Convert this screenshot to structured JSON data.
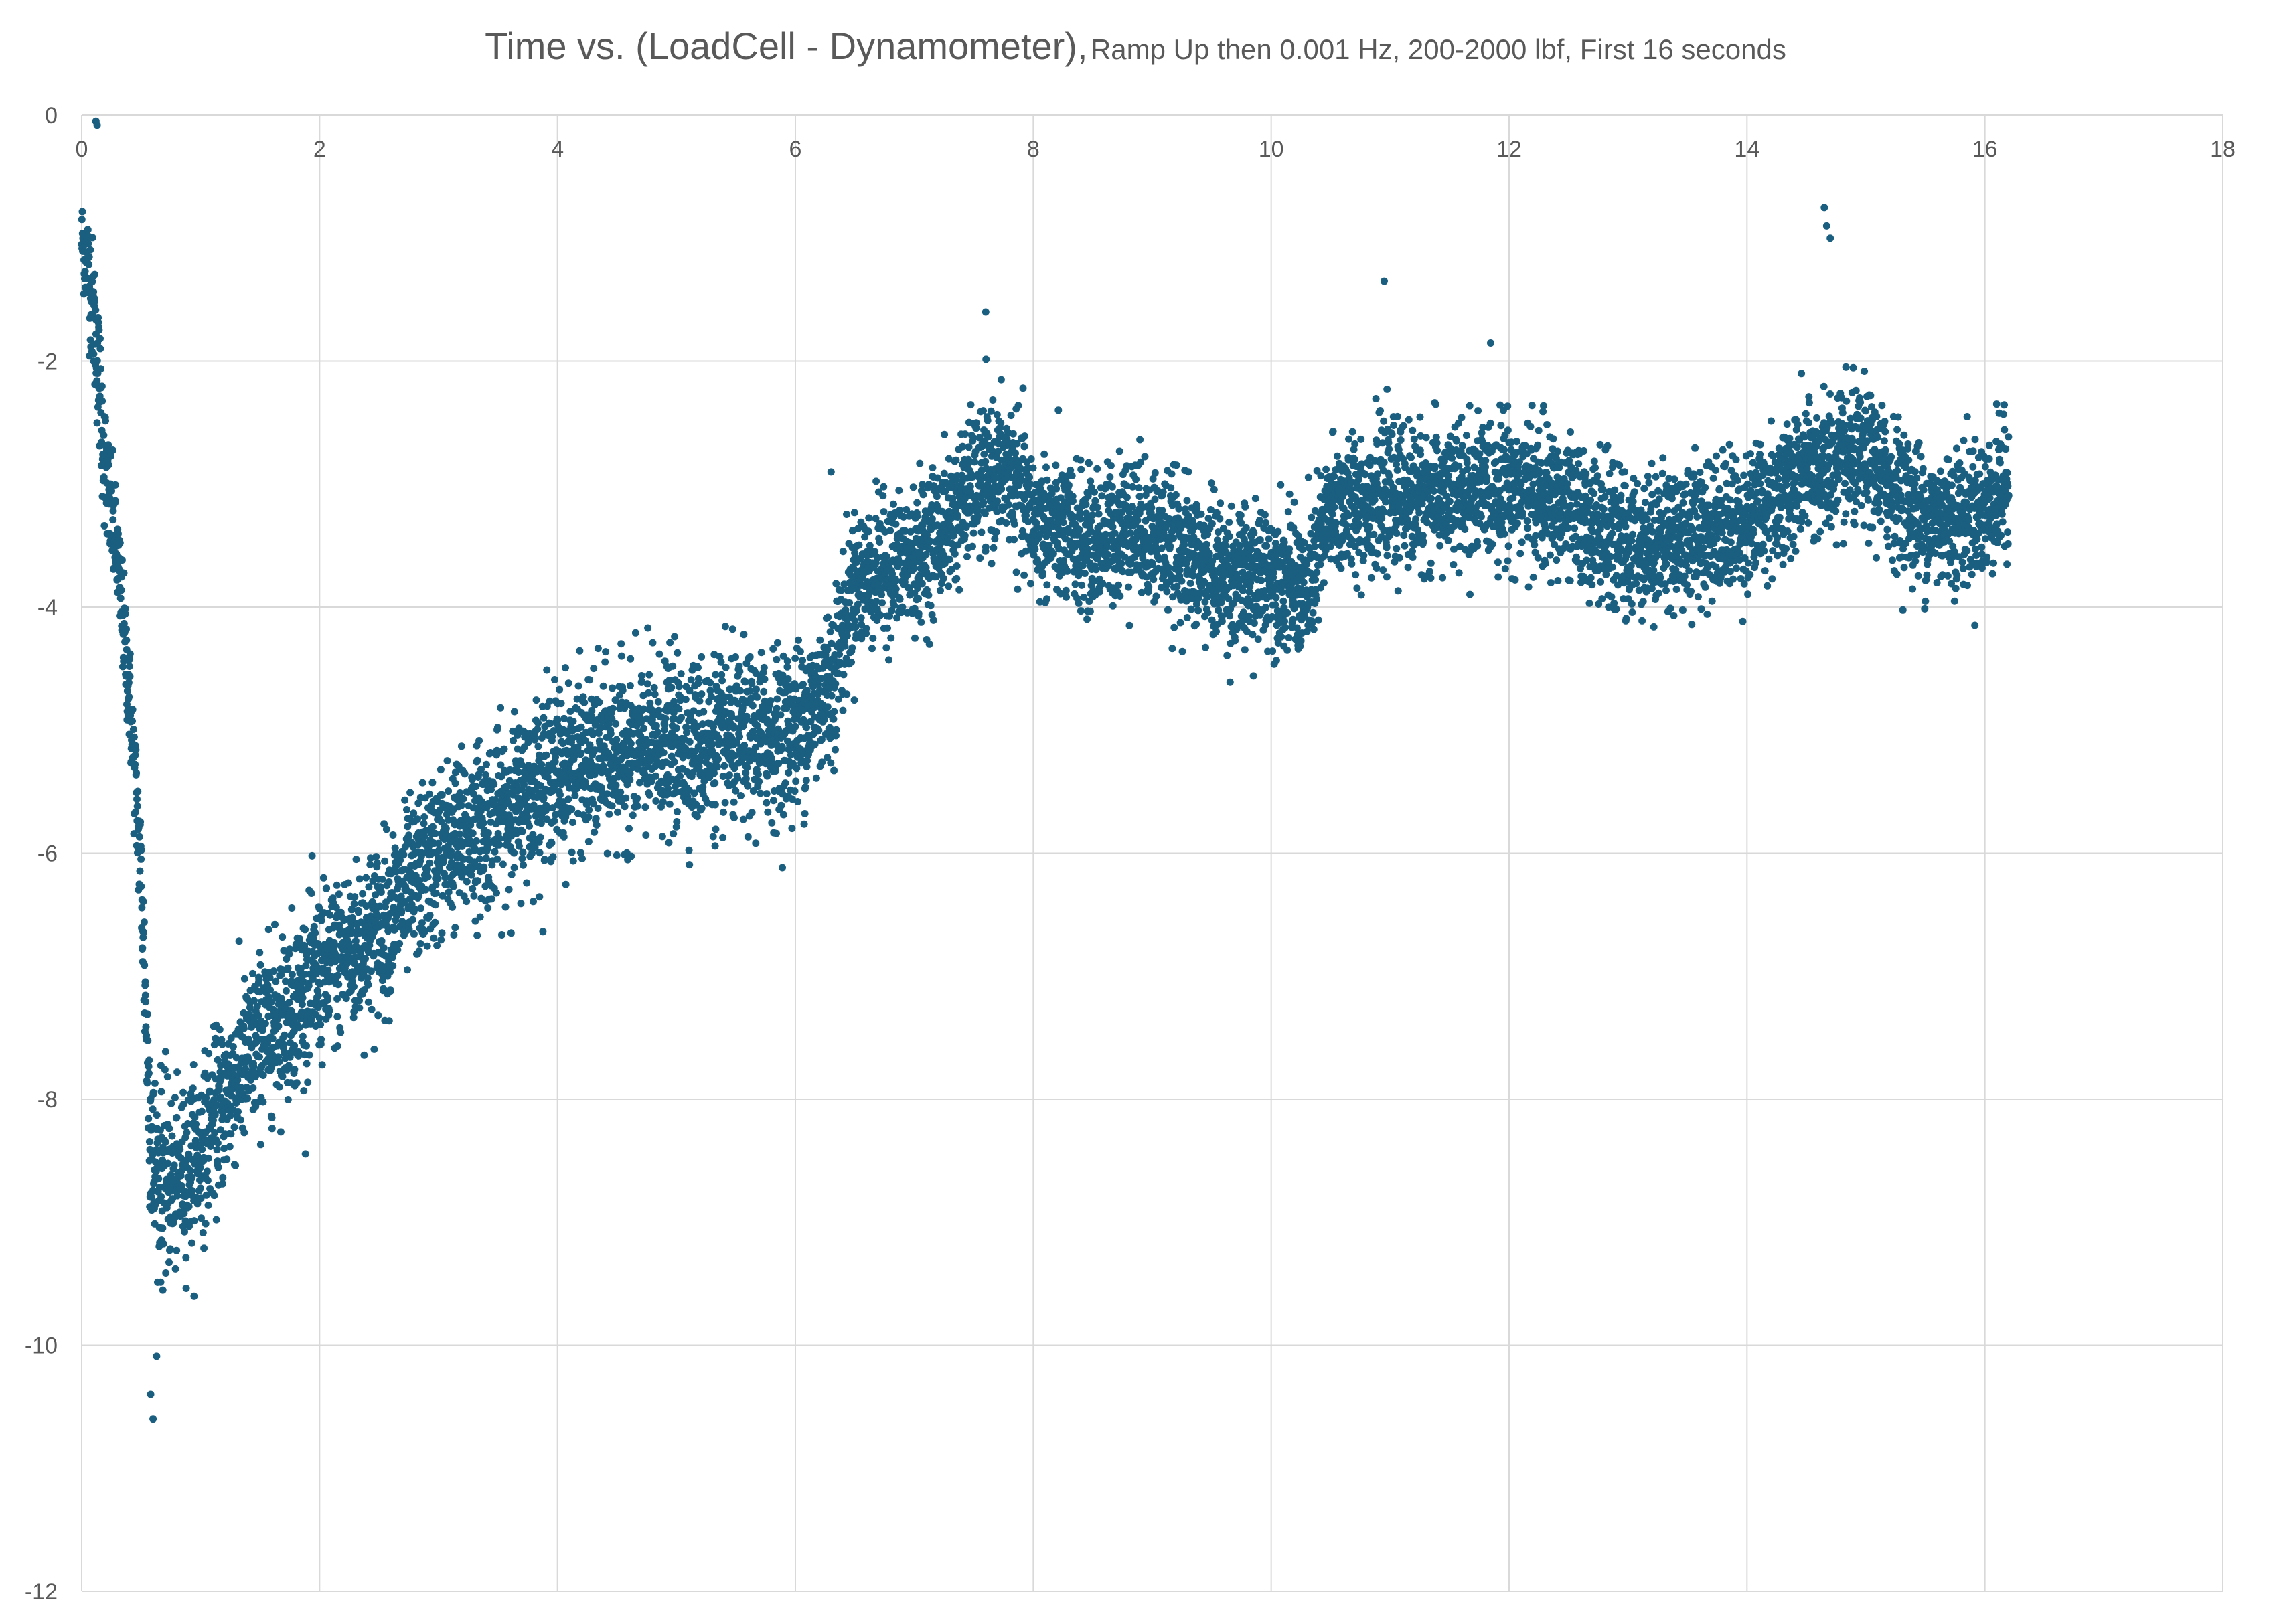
{
  "chart_data": {
    "type": "scatter",
    "title": "Time vs. (LoadCell - Dynamometer),",
    "subtitle": "Ramp Up then 0.001 Hz, 200-2000 lbf, First 16 seconds",
    "xlabel": "",
    "ylabel": "",
    "xlim": [
      0,
      18
    ],
    "ylim": [
      -12,
      0
    ],
    "x_ticks": [
      0,
      2,
      4,
      6,
      8,
      10,
      12,
      14,
      16,
      18
    ],
    "y_ticks": [
      0,
      -2,
      -4,
      -6,
      -8,
      -10,
      -12
    ],
    "x_axis_position": "top",
    "grid": true,
    "legend": "none",
    "marker_color": "#1a5e80",
    "grid_color": "#d9d9d9",
    "series": [
      {
        "trend_x": [
          0.0,
          0.05,
          0.1,
          0.15,
          0.2,
          0.3,
          0.4,
          0.5,
          0.55,
          0.6,
          0.8,
          1.0,
          1.2,
          1.5,
          2.0,
          2.5,
          3.0,
          3.5,
          4.0,
          4.5,
          5.0,
          5.5,
          6.0,
          6.3,
          6.5,
          7.0,
          7.3,
          7.5,
          7.8,
          8.0,
          8.5,
          8.8,
          9.0,
          9.5,
          9.8,
          10.0,
          10.3,
          10.5,
          11.0,
          11.5,
          12.0,
          12.5,
          13.0,
          13.5,
          14.0,
          14.5,
          15.0,
          15.5,
          16.0,
          16.2
        ],
        "trend_y": [
          -1.0,
          -1.2,
          -1.6,
          -2.2,
          -2.9,
          -3.6,
          -4.7,
          -6.2,
          -7.6,
          -8.6,
          -8.7,
          -8.4,
          -8.0,
          -7.5,
          -7.0,
          -6.6,
          -6.0,
          -5.7,
          -5.3,
          -5.2,
          -5.1,
          -5.1,
          -5.0,
          -4.6,
          -3.8,
          -3.6,
          -3.3,
          -3.0,
          -2.9,
          -3.3,
          -3.5,
          -3.3,
          -3.4,
          -3.7,
          -3.8,
          -3.7,
          -3.9,
          -3.2,
          -3.1,
          -3.1,
          -3.0,
          -3.2,
          -3.5,
          -3.4,
          -3.3,
          -2.9,
          -2.8,
          -3.3,
          -3.2,
          -3.0
        ],
        "spread": [
          0.3,
          0.4,
          0.5,
          0.5,
          0.5,
          0.4,
          0.4,
          0.5,
          0.6,
          0.8,
          0.6,
          0.6,
          0.6,
          0.6,
          0.6,
          0.6,
          0.6,
          0.6,
          0.6,
          0.6,
          0.6,
          0.6,
          0.6,
          0.6,
          0.5,
          0.5,
          0.5,
          0.5,
          0.5,
          0.5,
          0.5,
          0.5,
          0.5,
          0.5,
          0.5,
          0.5,
          0.5,
          0.5,
          0.5,
          0.5,
          0.5,
          0.5,
          0.5,
          0.5,
          0.5,
          0.5,
          0.5,
          0.5,
          0.5,
          0.5
        ],
        "samples": 9000,
        "outliers": [
          [
            0.12,
            -0.05
          ],
          [
            0.13,
            -0.08
          ],
          [
            14.65,
            -0.75
          ],
          [
            14.67,
            -0.9
          ],
          [
            14.7,
            -1.0
          ],
          [
            0.6,
            -10.6
          ],
          [
            0.58,
            -10.4
          ],
          [
            6.3,
            -2.9
          ],
          [
            10.95,
            -1.35
          ],
          [
            7.6,
            -1.6
          ]
        ]
      }
    ]
  }
}
